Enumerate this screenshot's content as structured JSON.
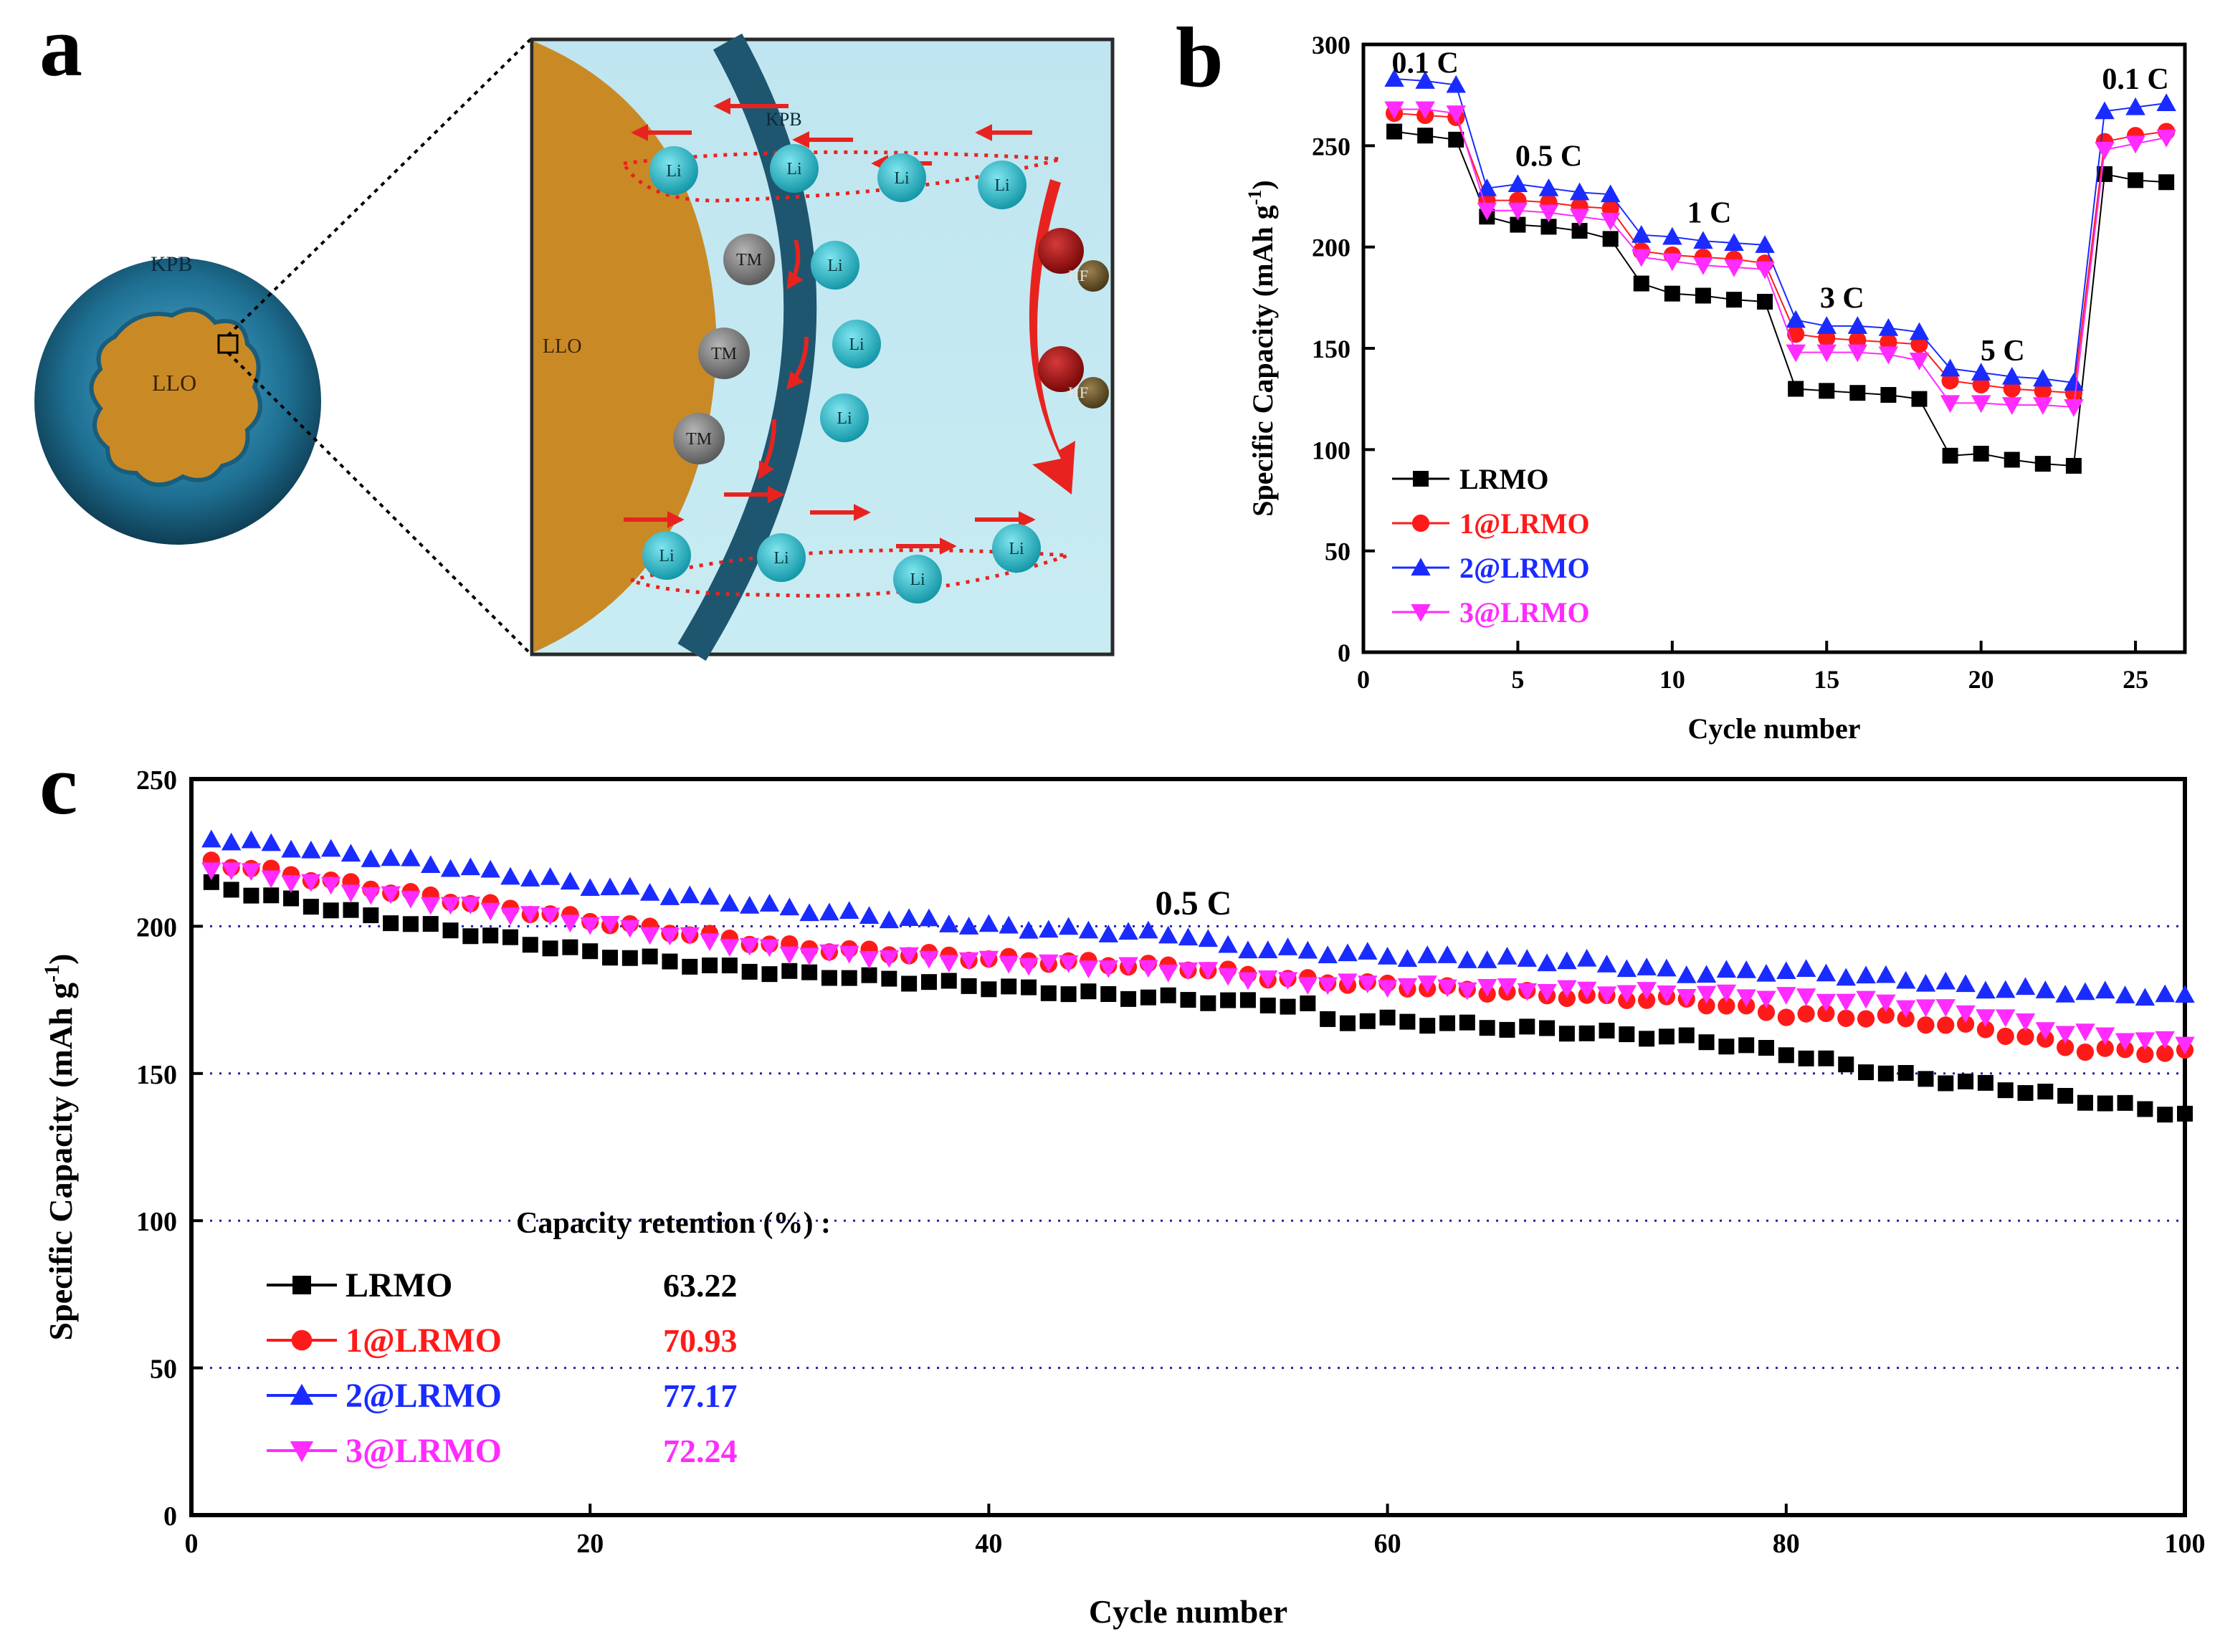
{
  "figure": {
    "panel_letters": [
      "a",
      "b",
      "c"
    ]
  },
  "schematic": {
    "sphere_shell_label": "KPB",
    "sphere_core_label": "LLO",
    "zoom_core_label": "LLO",
    "zoom_shell_label": "KPB",
    "li_label": "Li",
    "tm_label": "TM",
    "hf_label": "HF",
    "colors": {
      "background": "#bfe3ee",
      "core": "#c98a26",
      "shell": "#1e5670",
      "li": "#27b7c8",
      "tm": "#808080",
      "hf": "#9b1010",
      "arrow": "#e8231f"
    }
  },
  "colors": {
    "LRMO": "#000000",
    "1@LRMO": "#ff1a1a",
    "2@LRMO": "#1a2bff",
    "3@LRMO": "#ff2bff",
    "grid": "#2222aa"
  },
  "chart_data": [
    {
      "id": "b",
      "type": "line",
      "xlabel": "Cycle number",
      "ylabel": "Specific Capacity (mAh g",
      "ylabel_sup": "-1",
      "ylabel_close": ")",
      "xlim": [
        0,
        26.6
      ],
      "ylim": [
        0,
        300
      ],
      "xticks": [
        0,
        5,
        10,
        15,
        20,
        25
      ],
      "yticks": [
        0,
        50,
        100,
        150,
        200,
        250,
        300
      ],
      "rate_labels": [
        {
          "text": "0.1 C",
          "x": 2.0,
          "y": 286
        },
        {
          "text": "0.5 C",
          "x": 6.0,
          "y": 240
        },
        {
          "text": "1 C",
          "x": 11.2,
          "y": 212
        },
        {
          "text": "3 C",
          "x": 15.5,
          "y": 170
        },
        {
          "text": "5 C",
          "x": 20.7,
          "y": 144
        },
        {
          "text": "0.1 C",
          "x": 25.0,
          "y": 278
        }
      ],
      "x": [
        1,
        2,
        3,
        4,
        5,
        6,
        7,
        8,
        9,
        10,
        11,
        12,
        13,
        14,
        15,
        16,
        17,
        18,
        19,
        20,
        21,
        22,
        23,
        24,
        25,
        26
      ],
      "series": [
        {
          "name": "LRMO",
          "marker": "square",
          "values": [
            257,
            255,
            253,
            215,
            211,
            210,
            208,
            204,
            182,
            177,
            176,
            174,
            173,
            130,
            129,
            128,
            127,
            125,
            97,
            98,
            95,
            93,
            92,
            236,
            233,
            232
          ]
        },
        {
          "name": "1@LRMO",
          "marker": "circle",
          "values": [
            266,
            265,
            264,
            223,
            223,
            222,
            220,
            219,
            198,
            196,
            195,
            194,
            192,
            157,
            155,
            154,
            153,
            152,
            134,
            132,
            130,
            129,
            128,
            252,
            255,
            257
          ]
        },
        {
          "name": "2@LRMO",
          "marker": "triangle-up",
          "values": [
            283,
            282,
            280,
            229,
            231,
            229,
            227,
            226,
            206,
            205,
            203,
            202,
            201,
            164,
            161,
            161,
            160,
            158,
            140,
            138,
            136,
            135,
            133,
            267,
            269,
            271
          ]
        },
        {
          "name": "3@LRMO",
          "marker": "triangle-down",
          "values": [
            268,
            268,
            266,
            218,
            218,
            217,
            215,
            213,
            195,
            193,
            191,
            190,
            189,
            148,
            148,
            148,
            147,
            144,
            123,
            123,
            122,
            122,
            121,
            248,
            251,
            254
          ]
        }
      ],
      "legend": "bottom-left"
    },
    {
      "id": "c",
      "type": "line",
      "xlabel": "Cycle number",
      "ylabel": "Specific Capacity (mAh g",
      "ylabel_sup": "-1",
      "ylabel_close": ")",
      "xlim": [
        0,
        100
      ],
      "ylim": [
        0,
        250
      ],
      "xticks": [
        0,
        20,
        40,
        60,
        80,
        100
      ],
      "yticks": [
        0,
        50,
        100,
        150,
        200,
        250
      ],
      "gridlines_y": [
        50,
        100,
        150,
        200
      ],
      "rate_label": "0.5 C",
      "retention_title": "Capacity retention (%) :",
      "series": [
        {
          "name": "LRMO",
          "marker": "square",
          "retention": "63.22",
          "anchors": [
            [
              1,
              214
            ],
            [
              10,
              202
            ],
            [
              20,
              191
            ],
            [
              28,
              185
            ],
            [
              35,
              182
            ],
            [
              45,
              177
            ],
            [
              56,
              173
            ],
            [
              57,
              168
            ],
            [
              60,
              168
            ],
            [
              70,
              164
            ],
            [
              75,
              162
            ],
            [
              80,
              157
            ],
            [
              85,
              150
            ],
            [
              90,
              146
            ],
            [
              100,
              136
            ]
          ]
        },
        {
          "name": "1@LRMO",
          "marker": "circle",
          "retention": "70.93",
          "anchors": [
            [
              1,
              222
            ],
            [
              10,
              212
            ],
            [
              20,
              202
            ],
            [
              30,
              193
            ],
            [
              40,
              189
            ],
            [
              50,
              186
            ],
            [
              55,
              182
            ],
            [
              60,
              180
            ],
            [
              70,
              176
            ],
            [
              75,
              175
            ],
            [
              80,
              170
            ],
            [
              85,
              169
            ],
            [
              90,
              165
            ],
            [
              95,
              158
            ],
            [
              100,
              157
            ]
          ]
        },
        {
          "name": "2@LRMO",
          "marker": "triangle-up",
          "retention": "77.17",
          "anchors": [
            [
              1,
              230
            ],
            [
              10,
              223
            ],
            [
              20,
              214
            ],
            [
              30,
              206
            ],
            [
              40,
              200
            ],
            [
              50,
              197
            ],
            [
              52,
              193
            ],
            [
              60,
              190
            ],
            [
              70,
              188
            ],
            [
              75,
              184
            ],
            [
              80,
              185
            ],
            [
              86,
              182
            ],
            [
              90,
              179
            ],
            [
              100,
              176
            ]
          ]
        },
        {
          "name": "3@LRMO",
          "marker": "triangle-down",
          "retention": "72.24",
          "anchors": [
            [
              1,
              220
            ],
            [
              10,
              210
            ],
            [
              20,
              201
            ],
            [
              30,
              191
            ],
            [
              40,
              188
            ],
            [
              50,
              185
            ],
            [
              55,
              181
            ],
            [
              60,
              180
            ],
            [
              70,
              178
            ],
            [
              80,
              176
            ],
            [
              85,
              174
            ],
            [
              90,
              170
            ],
            [
              94,
              164
            ],
            [
              100,
              160
            ]
          ]
        }
      ],
      "legend": "bottom-left"
    }
  ]
}
